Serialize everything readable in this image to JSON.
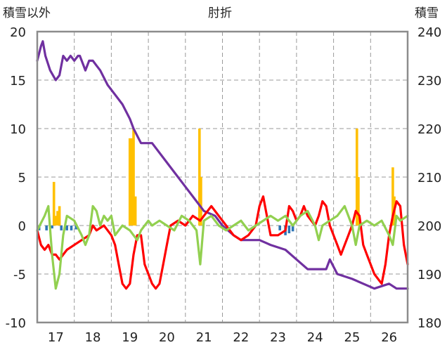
{
  "chart_data": {
    "type": "line",
    "title": "肘折",
    "ylabel_left": "積雪以外",
    "ylabel_right": "積雪",
    "x_ticks": [
      "17",
      "18",
      "19",
      "20",
      "21",
      "22",
      "23",
      "24",
      "25",
      "26"
    ],
    "xlim": [
      16.5,
      26.5
    ],
    "ylim_left": [
      -10,
      20
    ],
    "ylim_right": [
      180,
      240
    ],
    "left_ticks": [
      20,
      15,
      10,
      5,
      0,
      -5,
      -10
    ],
    "right_ticks": [
      240,
      230,
      220,
      210,
      200,
      190,
      180
    ],
    "grid": true,
    "series": [
      {
        "axis": "right",
        "color": "#7030A0",
        "values": [
          [
            16.5,
            234
          ],
          [
            16.6,
            237
          ],
          [
            16.65,
            238
          ],
          [
            16.72,
            235
          ],
          [
            16.85,
            232
          ],
          [
            17.0,
            230
          ],
          [
            17.1,
            231
          ],
          [
            17.2,
            235
          ],
          [
            17.3,
            234
          ],
          [
            17.4,
            235
          ],
          [
            17.5,
            234
          ],
          [
            17.6,
            235
          ],
          [
            17.65,
            235
          ],
          [
            17.75,
            233
          ],
          [
            17.8,
            232
          ],
          [
            17.9,
            234
          ],
          [
            18.0,
            234
          ],
          [
            18.1,
            233
          ],
          [
            18.2,
            232
          ],
          [
            18.4,
            229
          ],
          [
            18.6,
            227
          ],
          [
            18.8,
            225
          ],
          [
            19.0,
            222
          ],
          [
            19.1,
            220
          ],
          [
            19.3,
            217
          ],
          [
            19.6,
            217
          ],
          [
            19.9,
            214
          ],
          [
            20.2,
            211
          ],
          [
            20.5,
            208
          ],
          [
            20.8,
            205
          ],
          [
            21.0,
            203
          ],
          [
            21.3,
            202
          ],
          [
            21.5,
            200
          ],
          [
            21.8,
            198
          ],
          [
            22.0,
            197
          ],
          [
            22.5,
            197
          ],
          [
            22.8,
            196
          ],
          [
            23.2,
            195
          ],
          [
            23.5,
            193
          ],
          [
            23.8,
            191
          ],
          [
            24.3,
            191
          ],
          [
            24.4,
            193
          ],
          [
            24.6,
            190
          ],
          [
            25.0,
            189
          ],
          [
            25.3,
            188
          ],
          [
            25.6,
            187
          ],
          [
            26.0,
            188
          ],
          [
            26.2,
            187
          ],
          [
            26.5,
            187
          ]
        ]
      },
      {
        "axis": "left",
        "color": "#FF0000",
        "values": [
          [
            16.5,
            -0.5
          ],
          [
            16.6,
            -2
          ],
          [
            16.7,
            -2.5
          ],
          [
            16.8,
            -2
          ],
          [
            16.9,
            -3
          ],
          [
            17.0,
            -3
          ],
          [
            17.1,
            -3.5
          ],
          [
            17.2,
            -3
          ],
          [
            17.3,
            -2.5
          ],
          [
            17.5,
            -2
          ],
          [
            17.7,
            -1.5
          ],
          [
            17.9,
            -1
          ],
          [
            18.0,
            0
          ],
          [
            18.1,
            -0.5
          ],
          [
            18.3,
            0
          ],
          [
            18.5,
            -1
          ],
          [
            18.6,
            -2
          ],
          [
            18.7,
            -4
          ],
          [
            18.8,
            -6
          ],
          [
            18.9,
            -6.5
          ],
          [
            19.0,
            -6
          ],
          [
            19.1,
            -3
          ],
          [
            19.2,
            -1
          ],
          [
            19.3,
            -1
          ],
          [
            19.4,
            -4
          ],
          [
            19.5,
            -5
          ],
          [
            19.6,
            -6
          ],
          [
            19.7,
            -6.5
          ],
          [
            19.8,
            -6
          ],
          [
            19.9,
            -4
          ],
          [
            20.0,
            -2
          ],
          [
            20.1,
            0
          ],
          [
            20.3,
            0.5
          ],
          [
            20.5,
            0
          ],
          [
            20.7,
            1
          ],
          [
            20.9,
            0.5
          ],
          [
            21.0,
            1
          ],
          [
            21.2,
            2
          ],
          [
            21.4,
            1
          ],
          [
            21.6,
            0
          ],
          [
            21.8,
            -1
          ],
          [
            22.0,
            -1.5
          ],
          [
            22.2,
            -1
          ],
          [
            22.4,
            0
          ],
          [
            22.5,
            2
          ],
          [
            22.6,
            3
          ],
          [
            22.7,
            1
          ],
          [
            22.8,
            -1
          ],
          [
            23.0,
            -1
          ],
          [
            23.2,
            -0.5
          ],
          [
            23.3,
            2
          ],
          [
            23.4,
            1.5
          ],
          [
            23.5,
            0.5
          ],
          [
            23.6,
            1
          ],
          [
            23.7,
            2
          ],
          [
            23.8,
            1
          ],
          [
            24.0,
            0
          ],
          [
            24.1,
            1
          ],
          [
            24.2,
            2.5
          ],
          [
            24.3,
            2
          ],
          [
            24.4,
            0
          ],
          [
            24.5,
            -1
          ],
          [
            24.6,
            -2
          ],
          [
            24.7,
            -3
          ],
          [
            24.8,
            -2
          ],
          [
            24.9,
            -1
          ],
          [
            25.0,
            0
          ],
          [
            25.1,
            1.5
          ],
          [
            25.2,
            1
          ],
          [
            25.3,
            -2
          ],
          [
            25.4,
            -3
          ],
          [
            25.5,
            -4
          ],
          [
            25.6,
            -5
          ],
          [
            25.7,
            -5.5
          ],
          [
            25.8,
            -6
          ],
          [
            25.9,
            -4
          ],
          [
            26.0,
            -1
          ],
          [
            26.1,
            1
          ],
          [
            26.2,
            2.5
          ],
          [
            26.3,
            2
          ],
          [
            26.4,
            -2
          ],
          [
            26.5,
            -4
          ]
        ]
      },
      {
        "axis": "left",
        "color": "#92D050",
        "values": [
          [
            16.5,
            -0.5
          ],
          [
            16.7,
            1
          ],
          [
            16.8,
            2
          ],
          [
            16.9,
            -3
          ],
          [
            17.0,
            -6.5
          ],
          [
            17.1,
            -5
          ],
          [
            17.2,
            -1
          ],
          [
            17.3,
            1
          ],
          [
            17.5,
            0.5
          ],
          [
            17.7,
            -1
          ],
          [
            17.8,
            -2
          ],
          [
            17.9,
            -1
          ],
          [
            18.0,
            2
          ],
          [
            18.1,
            1.5
          ],
          [
            18.2,
            0
          ],
          [
            18.3,
            1
          ],
          [
            18.4,
            0.5
          ],
          [
            18.5,
            1
          ],
          [
            18.6,
            -1
          ],
          [
            18.7,
            -0.5
          ],
          [
            18.8,
            0
          ],
          [
            19.0,
            -0.5
          ],
          [
            19.1,
            -1
          ],
          [
            19.2,
            -1.5
          ],
          [
            19.3,
            -0.5
          ],
          [
            19.4,
            0
          ],
          [
            19.5,
            0.5
          ],
          [
            19.6,
            0
          ],
          [
            19.8,
            0.5
          ],
          [
            20.0,
            0
          ],
          [
            20.2,
            -0.5
          ],
          [
            20.4,
            1
          ],
          [
            20.6,
            0.5
          ],
          [
            20.8,
            -0.5
          ],
          [
            20.9,
            -4
          ],
          [
            21.0,
            0.5
          ],
          [
            21.2,
            1
          ],
          [
            21.4,
            0
          ],
          [
            21.6,
            -0.5
          ],
          [
            21.8,
            0
          ],
          [
            22.0,
            0.5
          ],
          [
            22.2,
            -0.5
          ],
          [
            22.4,
            0
          ],
          [
            22.6,
            0.5
          ],
          [
            22.8,
            1
          ],
          [
            23.0,
            0.5
          ],
          [
            23.2,
            1
          ],
          [
            23.4,
            0
          ],
          [
            23.6,
            1
          ],
          [
            23.8,
            1.5
          ],
          [
            24.0,
            0
          ],
          [
            24.1,
            -1.5
          ],
          [
            24.2,
            0
          ],
          [
            24.4,
            0.5
          ],
          [
            24.6,
            1
          ],
          [
            24.8,
            2
          ],
          [
            25.0,
            0
          ],
          [
            25.1,
            -2
          ],
          [
            25.2,
            0
          ],
          [
            25.4,
            0.5
          ],
          [
            25.6,
            0
          ],
          [
            25.8,
            0.5
          ],
          [
            26.0,
            -1
          ],
          [
            26.1,
            -2
          ],
          [
            26.2,
            1
          ],
          [
            26.3,
            0.5
          ],
          [
            26.5,
            1
          ]
        ]
      },
      {
        "axis": "left",
        "type": "bar",
        "color": "#FFC000",
        "values": [
          [
            16.95,
            4.5
          ],
          [
            16.99,
            1
          ],
          [
            17.05,
            1.5
          ],
          [
            17.1,
            2
          ],
          [
            19.0,
            9
          ],
          [
            19.05,
            9
          ],
          [
            19.1,
            10
          ],
          [
            19.15,
            3
          ],
          [
            20.88,
            10
          ],
          [
            20.92,
            5
          ],
          [
            25.13,
            10
          ],
          [
            25.17,
            5
          ],
          [
            26.1,
            6
          ],
          [
            26.14,
            3
          ]
        ]
      },
      {
        "axis": "left",
        "type": "bar",
        "color": "#2E75B6",
        "values": [
          [
            16.55,
            -0.5
          ],
          [
            16.75,
            -0.5
          ],
          [
            16.9,
            -0.3
          ],
          [
            17.15,
            -0.5
          ],
          [
            17.3,
            -0.5
          ],
          [
            17.42,
            -0.5
          ],
          [
            17.55,
            -0.4
          ],
          [
            23.05,
            -0.5
          ],
          [
            23.2,
            -1
          ],
          [
            23.3,
            -0.8
          ],
          [
            23.4,
            -0.6
          ]
        ]
      }
    ]
  }
}
